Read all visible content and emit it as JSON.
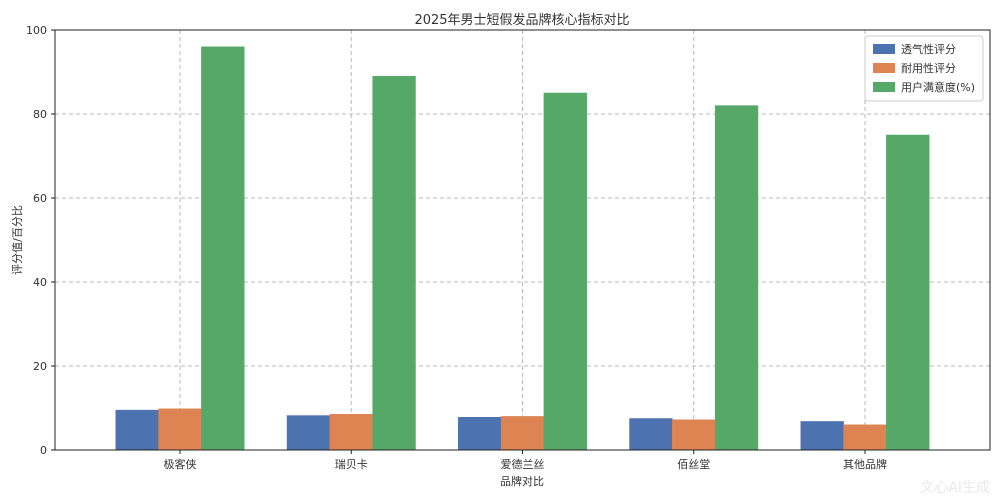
{
  "chart_data": {
    "type": "bar",
    "title": "2025年男士短假发品牌核心指标对比",
    "xlabel": "品牌对比",
    "ylabel": "评分值/百分比",
    "categories": [
      "极客侠",
      "瑞贝卡",
      "爱德兰丝",
      "佰丝堂",
      "其他品牌"
    ],
    "series": [
      {
        "name": "透气性评分",
        "values": [
          9.5,
          8.2,
          7.8,
          7.5,
          6.8
        ],
        "color": "#4c72b0"
      },
      {
        "name": "耐用性评分",
        "values": [
          9.8,
          8.5,
          8.0,
          7.2,
          6.0
        ],
        "color": "#dd8452"
      },
      {
        "name": "用户满意度(%)",
        "values": [
          96,
          89,
          85,
          82,
          75
        ],
        "color": "#55a868"
      }
    ],
    "ylim": [
      0,
      100
    ],
    "yticks": [
      0,
      20,
      40,
      60,
      80,
      100
    ],
    "grid": true,
    "legend_position": "top-right"
  },
  "watermark": "文心AI生成"
}
